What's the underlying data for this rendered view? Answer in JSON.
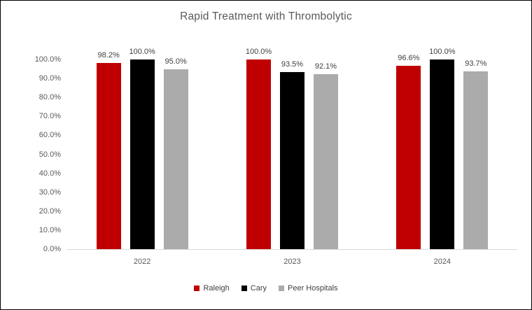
{
  "title": "Rapid Treatment with Thrombolytic",
  "chart_data": {
    "type": "bar",
    "title": "Rapid Treatment with Thrombolytic",
    "categories": [
      "2022",
      "2023",
      "2024"
    ],
    "series": [
      {
        "name": "Raleigh",
        "color": "#C00000",
        "values": [
          98.2,
          100.0,
          96.6
        ],
        "labels": [
          "98.2%",
          "100.0%",
          "96.6%"
        ]
      },
      {
        "name": "Cary",
        "color": "#000000",
        "values": [
          100.0,
          93.5,
          100.0
        ],
        "labels": [
          "100.0%",
          "93.5%",
          "100.0%"
        ]
      },
      {
        "name": "Peer Hospitals",
        "color": "#ABABAB",
        "values": [
          95.0,
          92.1,
          93.7
        ],
        "labels": [
          "95.0%",
          "92.1%",
          "93.7%"
        ]
      }
    ],
    "ylim": [
      0,
      100
    ],
    "yticks": [
      "0.0%",
      "10.0%",
      "20.0%",
      "30.0%",
      "40.0%",
      "50.0%",
      "60.0%",
      "70.0%",
      "80.0%",
      "90.0%",
      "100.0%"
    ],
    "grid": false,
    "legend_position": "bottom",
    "xlabel": "",
    "ylabel": ""
  },
  "colors": {
    "background": "#FFFFFF",
    "frame_border": "#000000",
    "title_text": "#595959",
    "axis_text": "#595959",
    "data_label_text": "#404040",
    "axis_line": "#D9D9D9"
  }
}
